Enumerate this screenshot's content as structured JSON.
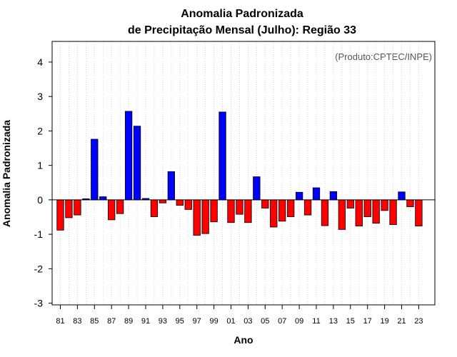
{
  "chart_data": {
    "type": "bar",
    "title_line1": "Anomalia Padronizada",
    "title_line2": "de Precipitação Mensal (Julho): Região 33",
    "xlabel": "Ano",
    "ylabel": "Anomalia Padronizada",
    "credit": "(Produto:CPTEC/INPE)",
    "ylim": [
      -3.05,
      4.6
    ],
    "yticks": [
      -3,
      -2,
      -1,
      0,
      1,
      2,
      3,
      4
    ],
    "xtick_labels": [
      "81",
      "83",
      "85",
      "87",
      "89",
      "91",
      "93",
      "95",
      "97",
      "99",
      "01",
      "03",
      "05",
      "07",
      "09",
      "11",
      "13",
      "15",
      "17",
      "19",
      "21",
      "23"
    ],
    "categories": [
      "1981",
      "1982",
      "1983",
      "1984",
      "1985",
      "1986",
      "1987",
      "1988",
      "1989",
      "1990",
      "1991",
      "1992",
      "1993",
      "1994",
      "1995",
      "1996",
      "1997",
      "1998",
      "1999",
      "2000",
      "2001",
      "2002",
      "2003",
      "2004",
      "2005",
      "2006",
      "2007",
      "2008",
      "2009",
      "2010",
      "2011",
      "2012",
      "2013",
      "2014",
      "2015",
      "2016",
      "2017",
      "2018",
      "2019",
      "2020",
      "2021",
      "2022",
      "2023"
    ],
    "values": [
      -0.88,
      -0.52,
      -0.44,
      0.03,
      1.76,
      0.09,
      -0.58,
      -0.4,
      2.57,
      2.14,
      0.04,
      -0.49,
      -0.09,
      0.82,
      -0.16,
      -0.28,
      -1.03,
      -0.98,
      -0.64,
      2.55,
      -0.66,
      -0.42,
      -0.66,
      0.67,
      -0.24,
      -0.79,
      -0.62,
      -0.49,
      0.22,
      -0.44,
      0.35,
      -0.75,
      0.24,
      -0.86,
      -0.24,
      -0.76,
      -0.49,
      -0.68,
      -0.31,
      -0.72,
      0.23,
      -0.2,
      -0.76
    ],
    "positive_color": "#0000ff",
    "negative_color": "#ff0000",
    "grid": "vertical-dotted",
    "zero_line": true
  }
}
